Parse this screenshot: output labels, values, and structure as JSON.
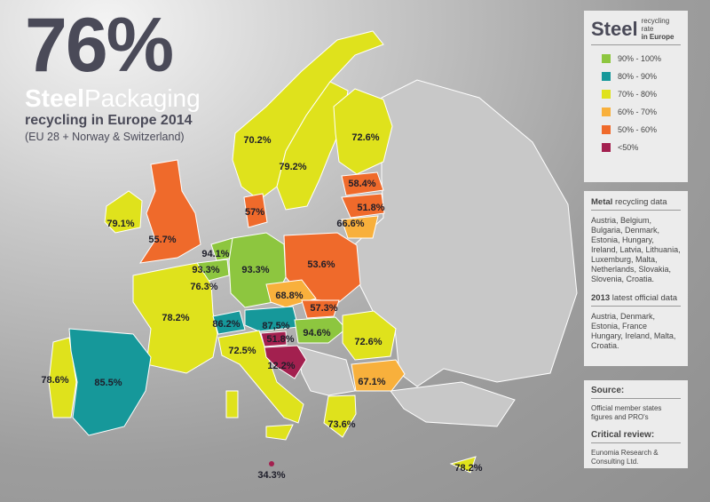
{
  "header": {
    "headline": "76%",
    "title_bold": "Steel",
    "title_rest": "Packaging",
    "subtitle": "recycling in Europe 2014",
    "note": "(EU 28 + Norway & Switzerland)"
  },
  "legend": {
    "title": "Steel",
    "caption": "recycling rate",
    "caption_bold": "in Europe",
    "items": [
      {
        "label": "90% - 100%",
        "color": "#8dc63f"
      },
      {
        "label": "80% - 90%",
        "color": "#16989a"
      },
      {
        "label": "70% - 80%",
        "color": "#dfe21c"
      },
      {
        "label": "60% - 70%",
        "color": "#f8b03c"
      },
      {
        "label": "50% - 60%",
        "color": "#ef6a2b"
      },
      {
        "label": "<50%",
        "color": "#a3204f"
      }
    ]
  },
  "info": {
    "metal_bold": "Metal",
    "metal_rest": "recycling data",
    "metal_text": "Austria, Belgium, Bulgaria, Denmark, Estonia, Hungary, Ireland, Latvia, Lithuania, Luxemburg, Malta, Netherlands, Slovakia, Slovenia, Croatia.",
    "year_bold": "2013",
    "year_rest": "latest official data",
    "year_text": "Austria, Denmark, Estonia, France Hungary, Ireland, Malta, Croatia."
  },
  "source": {
    "title": "Source:",
    "text": "Official member states figures and PRO's",
    "review_title": "Critical review:",
    "review_text": "Eunomia Research & Consulting Ltd."
  },
  "map": {
    "labels": [
      "70.2%",
      "79.2%",
      "72.6%",
      "58.4%",
      "51.8%",
      "66.6%",
      "57%",
      "79.1%",
      "55.7%",
      "94.1%",
      "93.3%",
      "93.3%",
      "53.6%",
      "76.3%",
      "68.8%",
      "57.3%",
      "78.2%",
      "86.2%",
      "87,5%",
      "51.8%",
      "94.6%",
      "72.6%",
      "72.5%",
      "12.2%",
      "67.1%",
      "78.6%",
      "85.5%",
      "73.6%",
      "34.3%",
      "78.2%"
    ]
  }
}
